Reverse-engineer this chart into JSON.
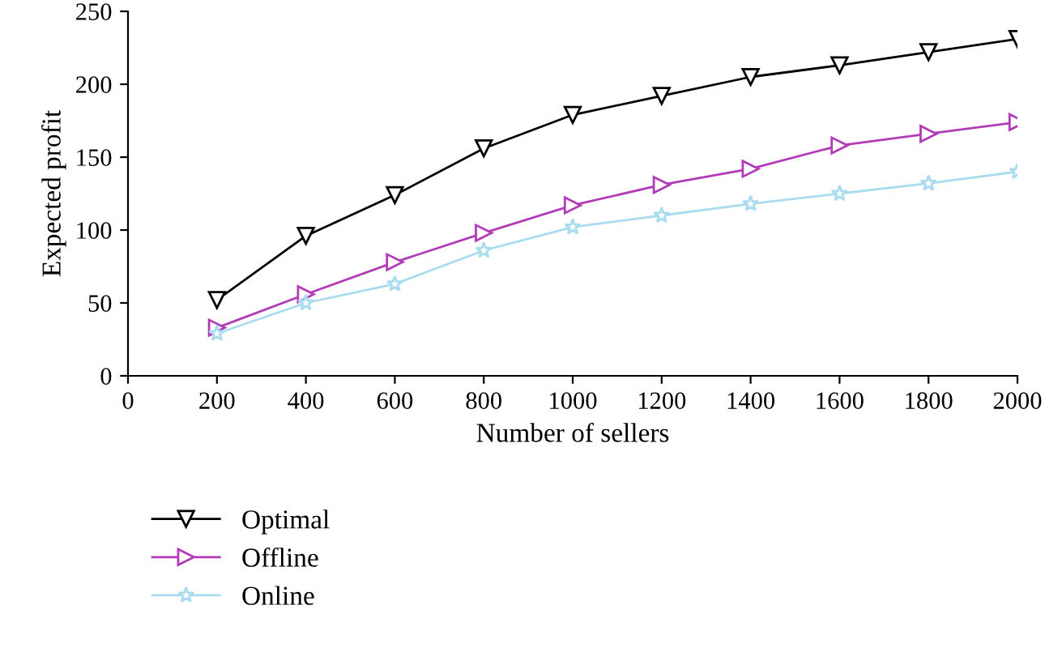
{
  "chart_data": {
    "type": "line",
    "xlabel": "Number of sellers",
    "ylabel": "Expected profit",
    "x": [
      200,
      400,
      600,
      800,
      1000,
      1200,
      1400,
      1600,
      1800,
      2000
    ],
    "series": [
      {
        "name": "Optimal",
        "color": "#000000",
        "marker": "triangle_down",
        "values": [
          52,
          96,
          124,
          156,
          179,
          192,
          205,
          213,
          222,
          231
        ]
      },
      {
        "name": "Offline",
        "color": "#b23bb8",
        "marker": "triangle_right",
        "values": [
          33,
          56,
          78,
          98,
          117,
          131,
          142,
          158,
          166,
          174
        ]
      },
      {
        "name": "Online",
        "color": "#a8dcee",
        "marker": "star",
        "values": [
          29,
          50,
          63,
          86,
          102,
          110,
          118,
          125,
          132,
          140
        ]
      }
    ],
    "xlim": [
      0,
      2000
    ],
    "xticks": [
      0,
      200,
      400,
      600,
      800,
      1000,
      1200,
      1400,
      1600,
      1800,
      2000
    ],
    "ylim": [
      0,
      250
    ],
    "yticks": [
      0,
      50,
      100,
      150,
      200,
      250
    ],
    "grid": false,
    "legend": "bottom left",
    "line_style": "solid"
  }
}
